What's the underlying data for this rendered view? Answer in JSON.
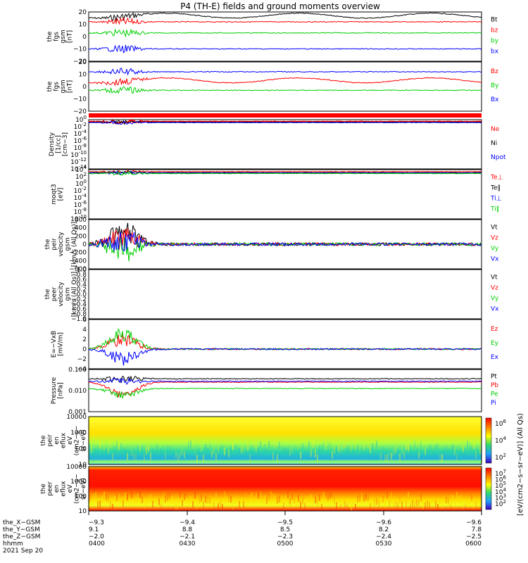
{
  "title": "P4 (TH-E) fields and ground moments overview",
  "colors": {
    "black": "#000000",
    "red": "#ff0000",
    "green": "#00d000",
    "blue": "#0000ff"
  },
  "chart_data": [
    {
      "type": "line",
      "ylabel": [
        "the",
        "fgs",
        "gsm",
        "[nT]"
      ],
      "ylim": [
        -20,
        20
      ],
      "yticks": [
        "20",
        "10",
        "0",
        "−10",
        "−20"
      ],
      "series": [
        {
          "name": "Bt",
          "color": "black",
          "level": 17
        },
        {
          "name": "bz",
          "color": "red",
          "level": 12
        },
        {
          "name": "by",
          "color": "green",
          "level": 3
        },
        {
          "name": "bx",
          "color": "blue",
          "level": -10
        }
      ]
    },
    {
      "type": "line",
      "ylabel": [
        "the",
        "fgs",
        "gsm",
        "[nT]"
      ],
      "ylim": [
        -20,
        20
      ],
      "yticks": [
        "20",
        "10",
        "0",
        "−10",
        "−20"
      ],
      "series": [
        {
          "name": "Bz",
          "color": "red",
          "level": 5
        },
        {
          "name": "By",
          "color": "green",
          "level": -3
        },
        {
          "name": "Bx",
          "color": "blue",
          "level": 12
        }
      ]
    },
    {
      "type": "line",
      "ylabel": [
        "Density",
        "[1/cc]",
        "[cm−3]"
      ],
      "log": true,
      "yticks": [
        "10^0",
        "10^-2",
        "10^-4",
        "10^-6",
        "10^-8",
        "10^-10",
        "10^-12",
        "10^-14"
      ],
      "series": [
        {
          "name": "Ne",
          "color": "red"
        },
        {
          "name": "Ni",
          "color": "black"
        },
        {
          "name": "Npot",
          "color": "blue"
        }
      ]
    },
    {
      "type": "line",
      "ylabel": [
        "moqt3",
        "[eV]"
      ],
      "log": true,
      "yticks": [
        "10^4",
        "10^2",
        "10^0",
        "10^-2",
        "10^-4",
        "10^-6",
        "10^-8",
        "10^-10"
      ],
      "series": [
        {
          "name": "Te⊥",
          "color": "red"
        },
        {
          "name": "Te‖",
          "color": "black"
        },
        {
          "name": "Ti⊥",
          "color": "blue"
        },
        {
          "name": "Ti‖",
          "color": "green"
        }
      ]
    },
    {
      "type": "line",
      "ylabel": [
        "the",
        "peir",
        "velocity",
        "gsm",
        "[km/s (All Qs)]"
      ],
      "ylim": [
        -600,
        600
      ],
      "yticks": [
        "600",
        "400",
        "200",
        "0",
        "−200",
        "−400",
        "−600"
      ],
      "series": [
        {
          "name": "Vt",
          "color": "black"
        },
        {
          "name": "Vz",
          "color": "red"
        },
        {
          "name": "Vy",
          "color": "green"
        },
        {
          "name": "Vx",
          "color": "blue"
        }
      ]
    },
    {
      "type": "line",
      "ylabel": [
        "the",
        "peer",
        "velocity",
        "gsm",
        "[km/s (All Qs)]"
      ],
      "ylim": [
        -1,
        1
      ],
      "yticks": [
        "1.0",
        "0.8",
        "0.6",
        "0.4",
        "0.2",
        "0.0",
        "−0.2",
        "−0.4",
        "−0.6",
        "−0.8",
        "−1.0"
      ],
      "series": [
        {
          "name": "Vt",
          "color": "black"
        },
        {
          "name": "Vz",
          "color": "red"
        },
        {
          "name": "Vy",
          "color": "green"
        },
        {
          "name": "Vx",
          "color": "blue"
        }
      ]
    },
    {
      "type": "line",
      "ylabel": [
        "E=−VxB",
        "[mV/m]"
      ],
      "ylim": [
        -4,
        6
      ],
      "yticks": [
        "6",
        "4",
        "2",
        "0",
        "−2",
        "−4"
      ],
      "series": [
        {
          "name": "Ez",
          "color": "red"
        },
        {
          "name": "Ey",
          "color": "green"
        },
        {
          "name": "Ex",
          "color": "blue"
        }
      ]
    },
    {
      "type": "line",
      "ylabel": [
        "Pressure",
        "[nPa]"
      ],
      "log": true,
      "yticks": [
        "0.100",
        "0.010",
        "0.001"
      ],
      "series": [
        {
          "name": "Pt",
          "color": "black"
        },
        {
          "name": "Pb",
          "color": "red"
        },
        {
          "name": "Pe",
          "color": "green"
        },
        {
          "name": "Pi",
          "color": "blue"
        }
      ]
    },
    {
      "type": "heatmap",
      "ylabel": [
        "the",
        "peir",
        "en",
        "eflux",
        "eV",
        "(cm2−s−",
        "sr−eV)"
      ],
      "yticks": [
        "10000",
        "1000",
        "100",
        "10"
      ],
      "colorbar": [
        "10^6",
        "10^4",
        "10^2"
      ]
    },
    {
      "type": "heatmap",
      "ylabel": [
        "the",
        "peer",
        "en",
        "eflux",
        "eV",
        "(cm2−s−",
        "sr−eV)"
      ],
      "yticks": [
        "10000",
        "1000",
        "100",
        "10"
      ],
      "colorbar": [
        "10^7",
        "10^6",
        "10^5",
        "10^4",
        "10^3",
        "10^2"
      ]
    }
  ],
  "colorbar_label": "[eV/(cm2−s−sr−eV)] (All Qs)",
  "xaxis": {
    "rows": [
      {
        "label": "the_X−GSM",
        "values": [
          "−9.3",
          "−9.4",
          "−9.5",
          "−9.6",
          "−9.6"
        ]
      },
      {
        "label": "the_Y−GSM",
        "values": [
          "9.1",
          "8.8",
          "8.5",
          "8.2",
          "7.8"
        ]
      },
      {
        "label": "the_Z−GSM",
        "values": [
          "−2.0",
          "−2.1",
          "−2.3",
          "−2.4",
          "−2.5"
        ]
      },
      {
        "label": "hhmm",
        "values": [
          "0400",
          "0430",
          "0500",
          "0530",
          "0600"
        ]
      }
    ],
    "date": "2021 Sep 20"
  }
}
